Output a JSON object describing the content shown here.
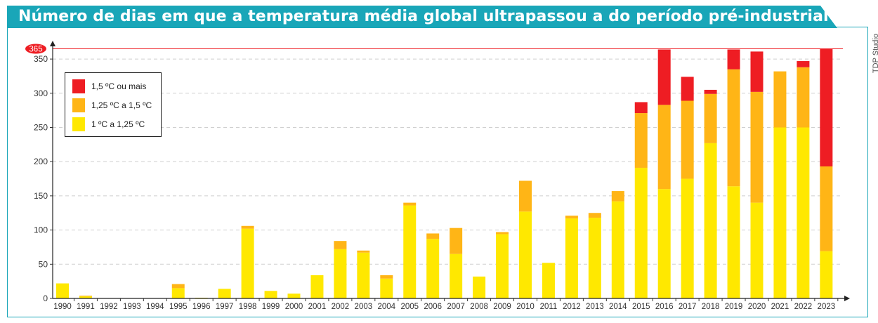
{
  "header": {
    "title": "Número de dias em que a temperatura média global ultrapassou a do período pré-industrial"
  },
  "credit": "TDP Studio",
  "colors": {
    "accent": "#19a6b8",
    "tier1": "#ffe800",
    "tier2": "#ffb516",
    "tier3": "#ee1d23"
  },
  "chart_data": {
    "type": "bar",
    "stacked": true,
    "categories": [
      "1990",
      "1991",
      "1992",
      "1993",
      "1994",
      "1995",
      "1996",
      "1997",
      "1998",
      "1999",
      "2000",
      "2001",
      "2002",
      "2003",
      "2004",
      "2005",
      "2006",
      "2007",
      "2008",
      "2009",
      "2010",
      "2011",
      "2012",
      "2013",
      "2014",
      "2015",
      "2016",
      "2017",
      "2018",
      "2019",
      "2020",
      "2021",
      "2022",
      "2023"
    ],
    "series": [
      {
        "name": "1 ºC a 1,25 ºC",
        "color": "#ffe800",
        "values": [
          22,
          3,
          0,
          0,
          0,
          15,
          1,
          14,
          102,
          11,
          7,
          34,
          72,
          67,
          29,
          136,
          87,
          65,
          32,
          94,
          127,
          52,
          117,
          118,
          142,
          191,
          160,
          175,
          227,
          164,
          140,
          250,
          250,
          69
        ]
      },
      {
        "name": "1,25 ºC a 1,5 ºC",
        "color": "#ffb516",
        "values": [
          0,
          1,
          0,
          0,
          0,
          6,
          0,
          0,
          4,
          0,
          0,
          0,
          12,
          3,
          5,
          4,
          8,
          38,
          0,
          3,
          45,
          0,
          4,
          7,
          15,
          80,
          123,
          114,
          72,
          171,
          162,
          82,
          88,
          124
        ]
      },
      {
        "name": "1,5 ºC ou mais",
        "color": "#ee1d23",
        "values": [
          0,
          0,
          0,
          0,
          0,
          0,
          0,
          0,
          0,
          0,
          0,
          0,
          0,
          0,
          0,
          0,
          0,
          0,
          0,
          0,
          0,
          0,
          0,
          0,
          0,
          16,
          81,
          35,
          6,
          29,
          59,
          0,
          9,
          172
        ]
      }
    ],
    "yticks": [
      0,
      50,
      100,
      150,
      200,
      250,
      300,
      350
    ],
    "ylim": [
      0,
      372
    ],
    "reference_line": {
      "value": 365,
      "label": "365"
    },
    "grid": true,
    "legend_position": "top-left"
  }
}
